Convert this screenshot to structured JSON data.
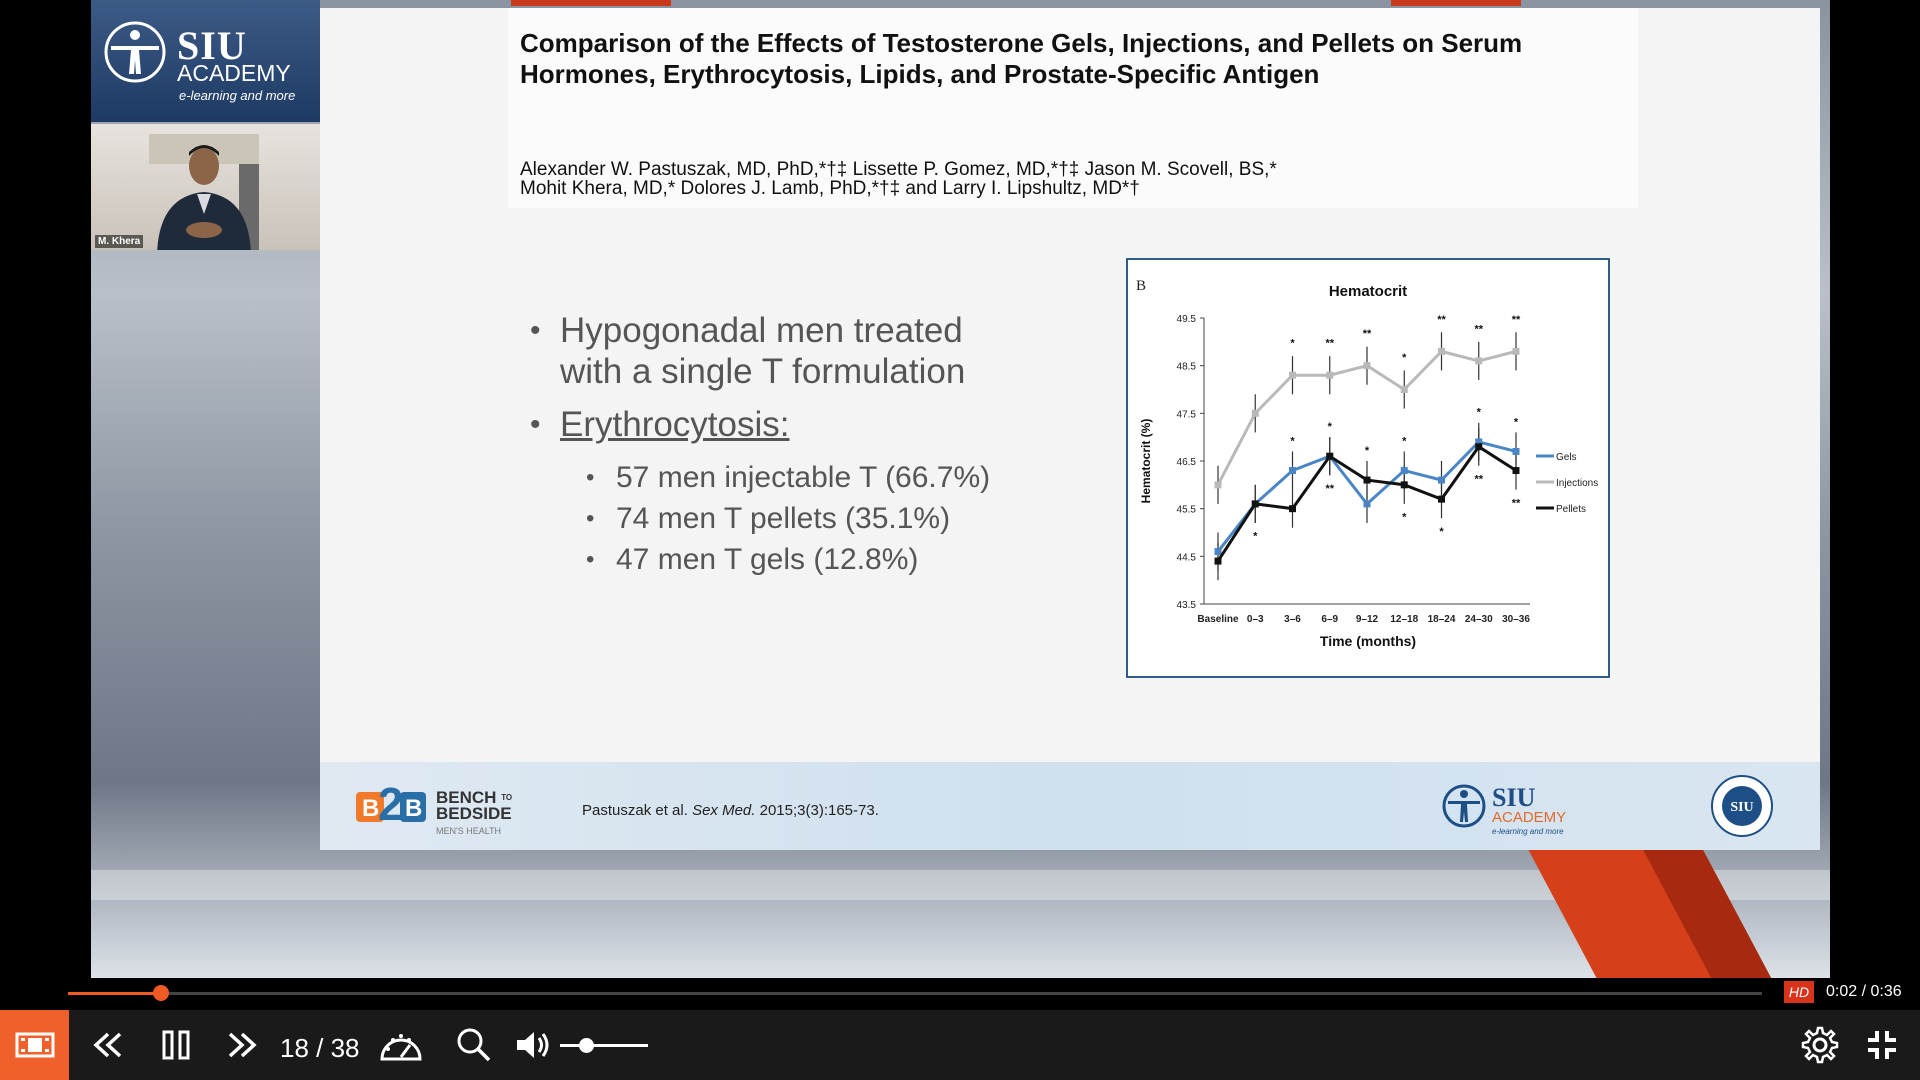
{
  "logo": {
    "name": "SIU",
    "academy": "ACADEMY",
    "tagline": "e-learning and more"
  },
  "webcam": {
    "speaker": "M. Khera"
  },
  "slide": {
    "title": "Comparison of the Effects of Testosterone Gels, Injections, and Pellets on Serum Hormones, Erythrocytosis, Lipids, and Prostate-Specific Antigen",
    "authors_line1": "Alexander W. Pastuszak, MD, PhD,*†‡ Lissette P. Gomez, MD,*†‡ Jason M. Scovell, BS,*",
    "authors_line2": "Mohit Khera, MD,* Dolores J. Lamb, PhD,*†‡ and Larry I. Lipshultz, MD*†",
    "bullet1": "Hypogonadal men treated with a single T formulation",
    "bullet1_line1": "Hypogonadal men treated",
    "bullet1_line2": "with a single T formulation",
    "bullet2": "Erythrocytosis:",
    "sub1": "57 men injectable T (66.7%)",
    "sub2": "74 men T pellets (35.1%)",
    "sub3": "47 men T gels  (12.8%)",
    "footer_brand_line1": "BENCH",
    "footer_brand_to": "TO",
    "footer_brand_line2": "BEDSIDE",
    "footer_brand_sub": "MEN'S HEALTH",
    "citation_authors": "Pastuszak et al.",
    "citation_journal": "Sex Med.",
    "citation_ref": "2015;3(3):165-73.",
    "footer_siu": "SIU",
    "footer_academy": "ACADEMY",
    "footer_tagline": "e-learning and more",
    "seal_text": "SIU"
  },
  "chart_data": {
    "type": "line",
    "panel_label": "B",
    "title": "Hematocrit",
    "xlabel": "Time (months)",
    "ylabel": "Hematocrit (%)",
    "categories": [
      "Baseline",
      "0–3",
      "3–6",
      "6–9",
      "9–12",
      "12–18",
      "18–24",
      "24–30",
      "30–36"
    ],
    "yticks": [
      "43.5",
      "44.5",
      "45.5",
      "46.5",
      "47.5",
      "48.5",
      "49.5"
    ],
    "ylim": [
      43.5,
      49.5
    ],
    "series": [
      {
        "name": "Gels",
        "color": "#4a86c5",
        "values": [
          44.6,
          45.6,
          46.3,
          46.6,
          45.6,
          46.3,
          46.1,
          46.9,
          46.7
        ]
      },
      {
        "name": "Injections",
        "color": "#b9b9b9",
        "values": [
          46.0,
          47.5,
          48.3,
          48.3,
          48.5,
          48.0,
          48.8,
          48.6,
          48.8
        ]
      },
      {
        "name": "Pellets",
        "color": "#111111",
        "values": [
          44.4,
          45.6,
          45.5,
          46.6,
          46.1,
          46.0,
          45.7,
          46.8,
          46.3
        ]
      }
    ],
    "annotations_top": [
      "",
      "",
      "*",
      "**",
      "**",
      "*",
      "**",
      "**",
      "**"
    ],
    "annotations_mid": [
      "",
      "",
      "*",
      "*",
      "*",
      "*",
      "",
      "*",
      "*"
    ],
    "annotations_low": [
      "",
      "*",
      "",
      "**",
      "",
      "*",
      "*",
      "**",
      "**"
    ]
  },
  "player": {
    "hd_label": "HD",
    "time": "0:02 / 0:36",
    "progress_fraction": 0.055,
    "page": "18 / 38",
    "volume_fraction": 0.3
  }
}
